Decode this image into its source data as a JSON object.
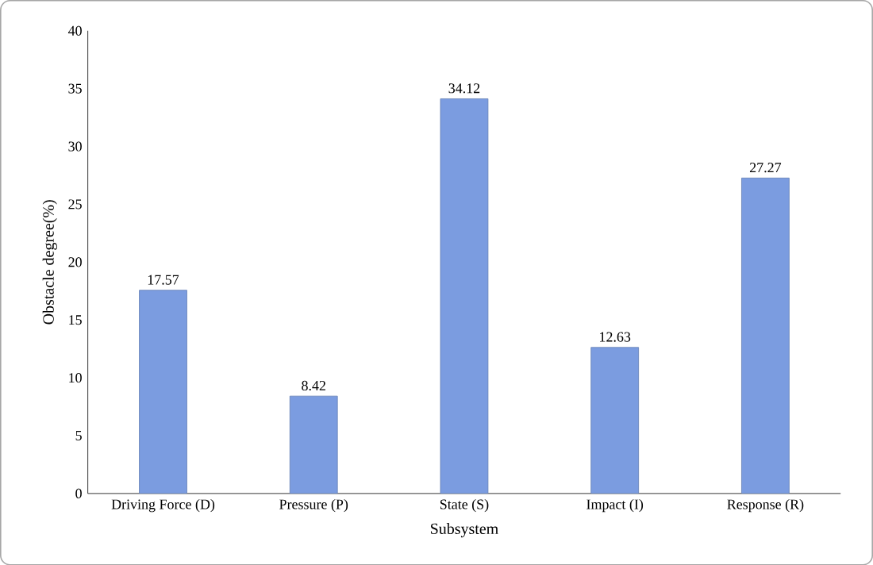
{
  "chart_data": {
    "type": "bar",
    "xlabel": "Subsystem",
    "ylabel": "Obstacle degree(%)",
    "categories": [
      "Driving Force (D)",
      "Pressure (P)",
      "State (S)",
      "Impact (I)",
      "Response (R)"
    ],
    "values": [
      17.57,
      8.42,
      34.12,
      12.63,
      27.27
    ],
    "color": "#7b9ce0",
    "ylim": [
      0,
      40
    ],
    "yticks": [
      0,
      5,
      10,
      15,
      20,
      25,
      30,
      35,
      40
    ],
    "data_labels": true,
    "grid": false
  }
}
